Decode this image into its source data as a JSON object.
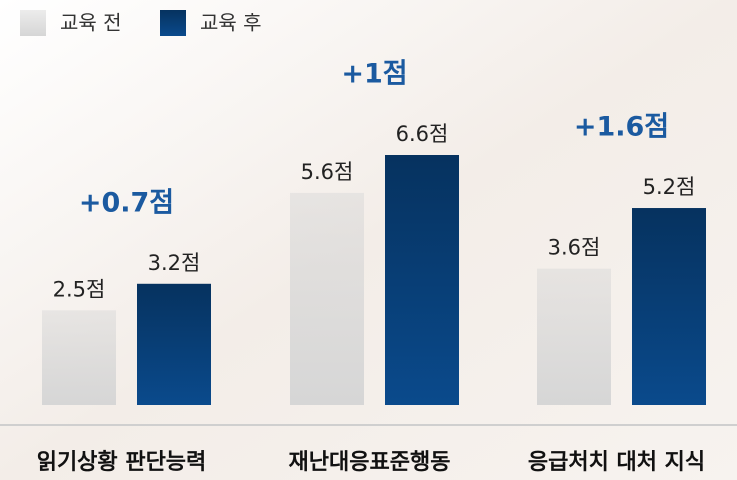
{
  "chart_data": {
    "type": "bar",
    "categories": [
      "읽기상황 판단능력",
      "재난대응표준행동",
      "응급처치 대처 지식"
    ],
    "series": [
      {
        "name": "교육 전",
        "color": "#d6d6d6",
        "values": [
          2.5,
          5.6,
          3.6
        ],
        "value_labels": [
          "2.5점",
          "5.6점",
          "3.6점"
        ]
      },
      {
        "name": "교육 후",
        "color": "#0a4a8c",
        "values": [
          3.2,
          6.6,
          5.2
        ],
        "value_labels": [
          "3.2점",
          "6.6점",
          "5.2점"
        ]
      }
    ],
    "annotations": [
      "+0.7점",
      "+1점",
      "+1.6점"
    ],
    "annotation_color": "#1b5aa0"
  }
}
